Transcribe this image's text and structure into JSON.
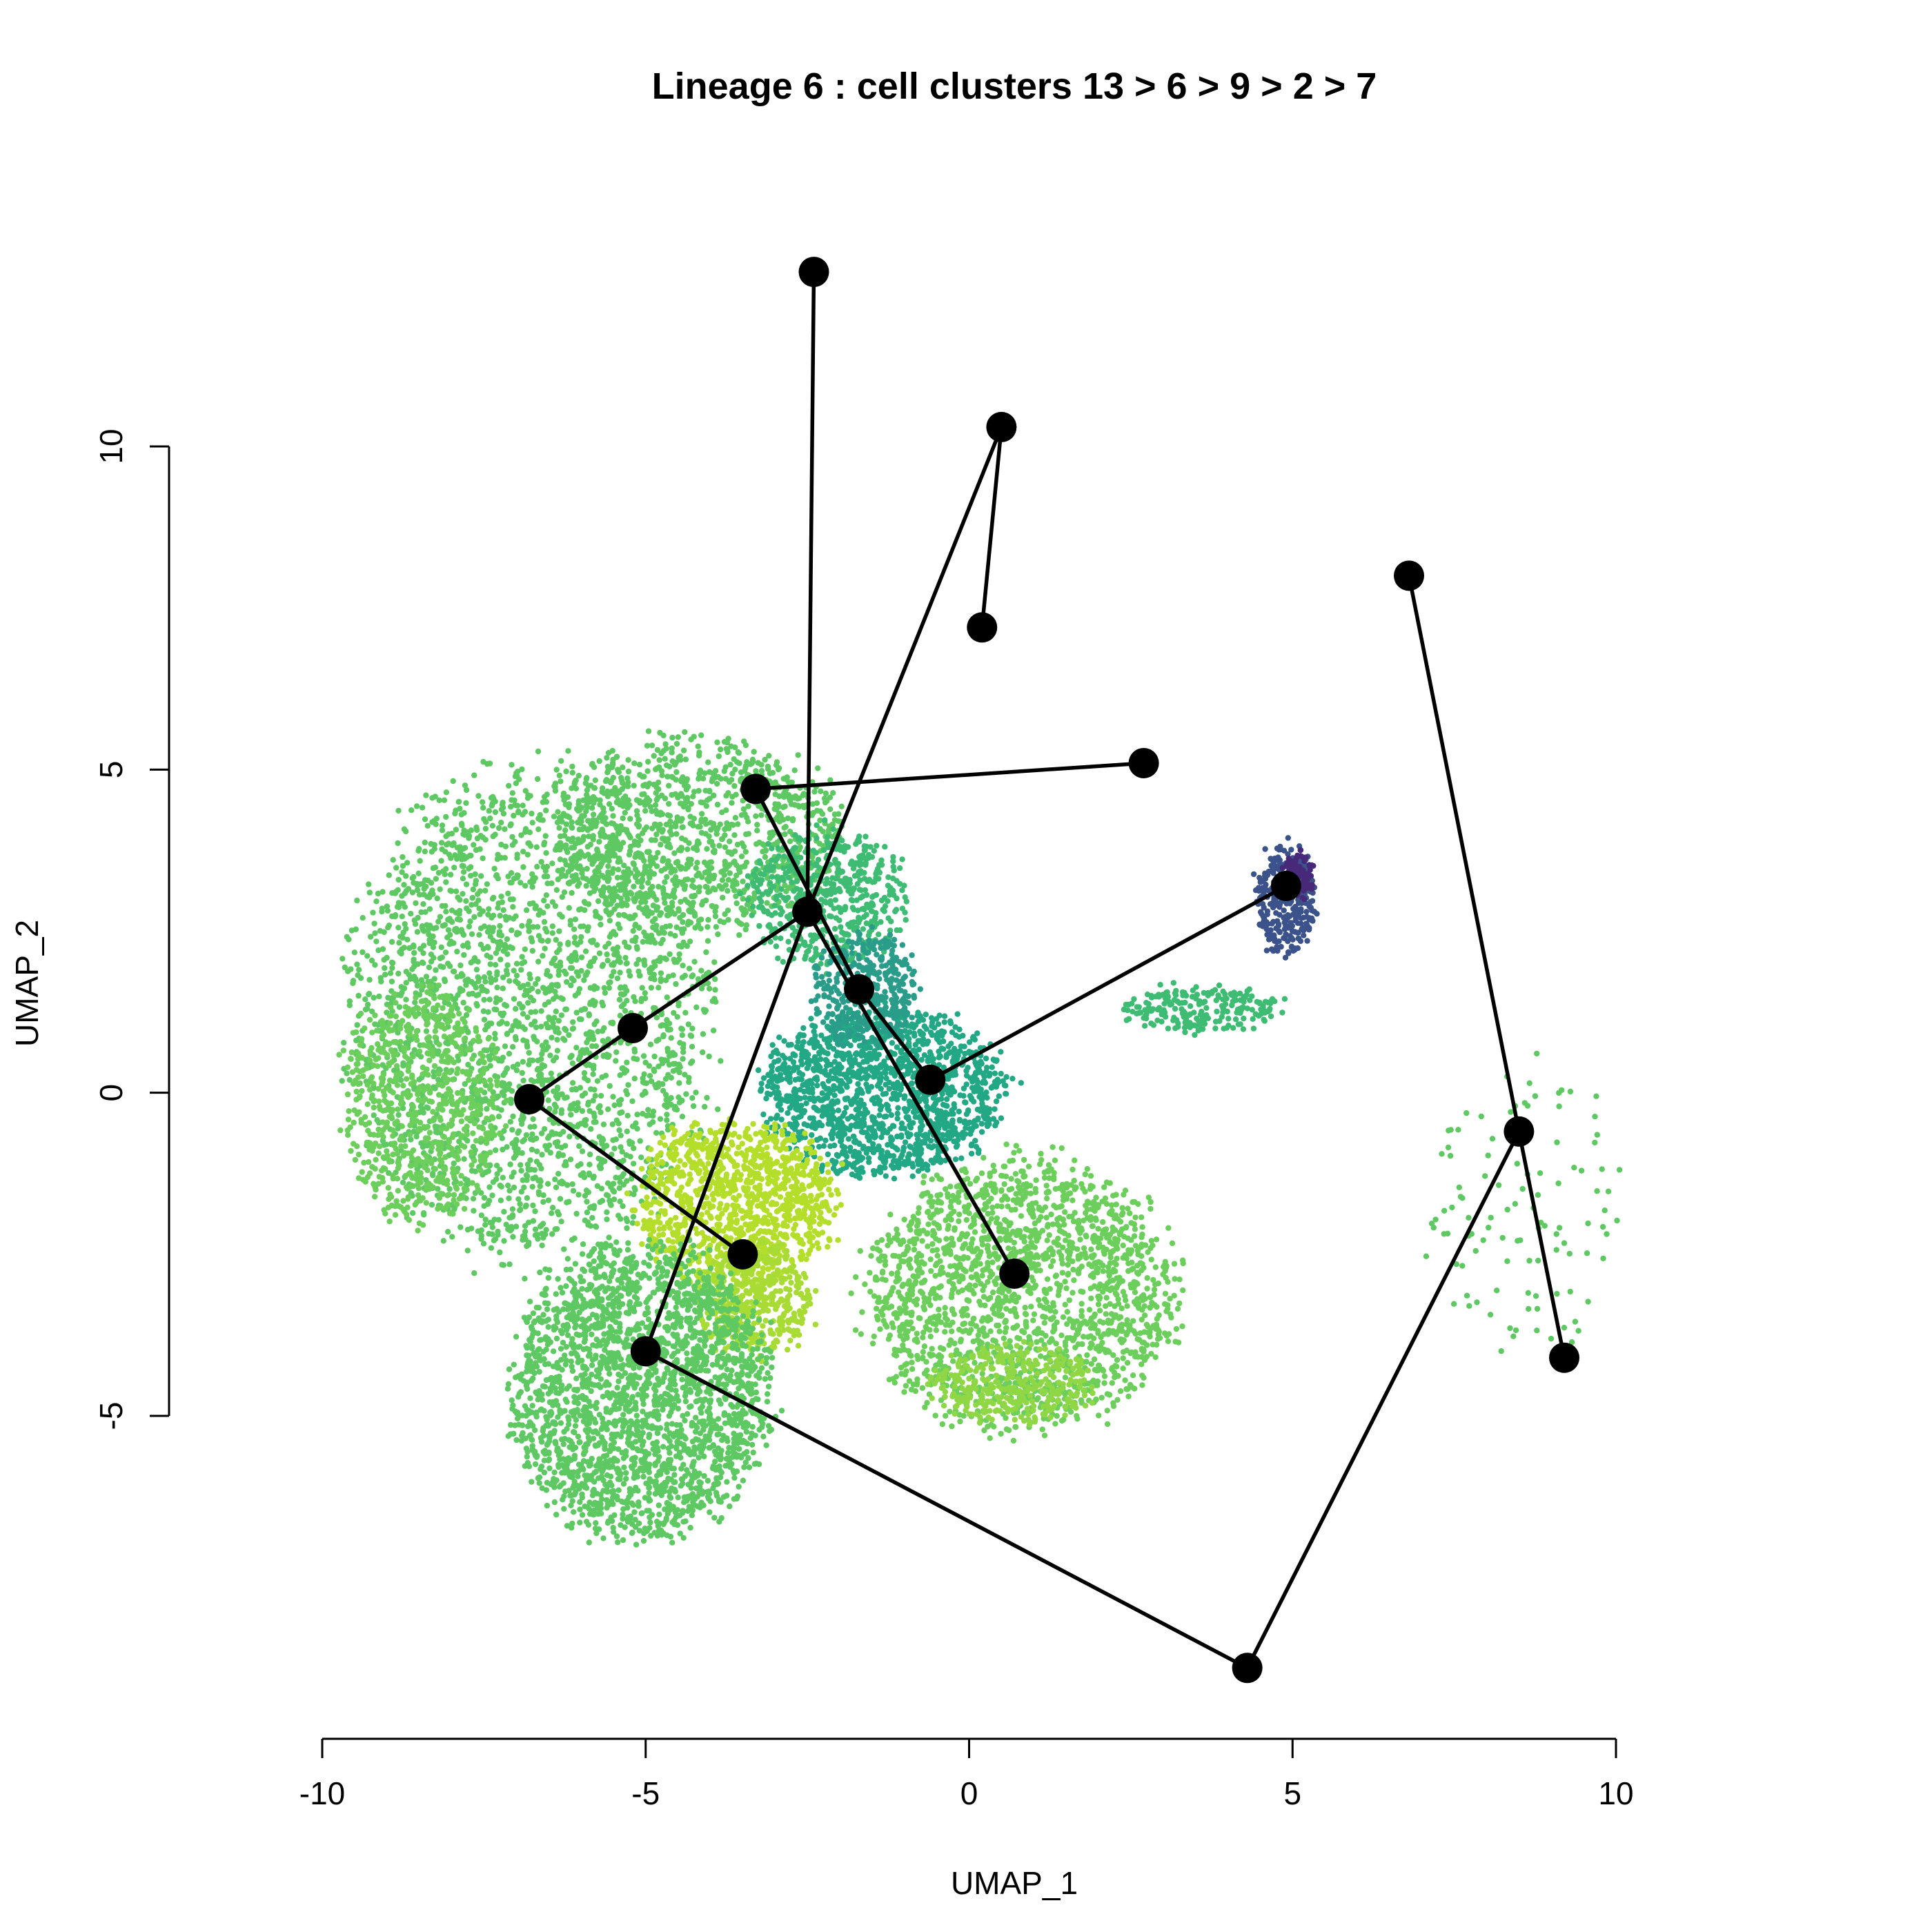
{
  "chart_data": {
    "type": "scatter",
    "title": "Lineage 6 : cell clusters 13 > 6 > 9 > 2 > 7",
    "xlabel": "UMAP_1",
    "ylabel": "UMAP_2",
    "xlim": [
      -10,
      10
    ],
    "ylim": [
      -5,
      10
    ],
    "x_ticks": [
      "-10",
      "-5",
      "0",
      "5",
      "10"
    ],
    "y_ticks": [
      "-5",
      "0",
      "5",
      "10"
    ],
    "grid": false,
    "legend": "none",
    "colormap": [
      "#440154",
      "#3b528b",
      "#21908c",
      "#5ec962",
      "#fde725"
    ],
    "cell_regions": [
      {
        "name": "left-lobe",
        "cx": -6.8,
        "cy": 1.2,
        "rx": 2.8,
        "ry": 3.8,
        "n": 2600,
        "color": "#5ec962"
      },
      {
        "name": "left-edge",
        "cx": -8.5,
        "cy": -0.2,
        "rx": 1.2,
        "ry": 1.8,
        "n": 700,
        "color": "#6ccf5c"
      },
      {
        "name": "upper-band",
        "cx": -4.2,
        "cy": 4.0,
        "rx": 2.3,
        "ry": 1.5,
        "n": 1100,
        "color": "#5ec962"
      },
      {
        "name": "upper-right-band",
        "cx": -2.2,
        "cy": 3.0,
        "rx": 1.2,
        "ry": 1.1,
        "n": 550,
        "color": "#3fbc73"
      },
      {
        "name": "teal-core",
        "cx": -1.3,
        "cy": 0.0,
        "rx": 1.9,
        "ry": 1.3,
        "n": 1500,
        "color": "#22a884"
      },
      {
        "name": "teal-stem",
        "cx": -1.6,
        "cy": 1.6,
        "rx": 0.8,
        "ry": 0.9,
        "n": 350,
        "color": "#2a9d8a"
      },
      {
        "name": "yellow-patch",
        "cx": -3.6,
        "cy": -1.7,
        "rx": 1.6,
        "ry": 1.3,
        "n": 1100,
        "color": "#b5de2b"
      },
      {
        "name": "yellow-tail",
        "cx": -3.3,
        "cy": -3.2,
        "rx": 0.9,
        "ry": 0.9,
        "n": 450,
        "color": "#a8db34"
      },
      {
        "name": "bottom-lobe",
        "cx": -5.1,
        "cy": -4.6,
        "rx": 2.0,
        "ry": 2.3,
        "n": 2400,
        "color": "#5ec962"
      },
      {
        "name": "right-lobe",
        "cx": 0.8,
        "cy": -3.1,
        "rx": 2.4,
        "ry": 2.1,
        "n": 1900,
        "color": "#6ccf5c"
      },
      {
        "name": "right-bottom",
        "cx": 0.7,
        "cy": -4.5,
        "rx": 1.3,
        "ry": 0.6,
        "n": 350,
        "color": "#8fd744"
      },
      {
        "name": "purple-cluster",
        "cx": 4.9,
        "cy": 3.0,
        "rx": 0.45,
        "ry": 0.9,
        "n": 320,
        "color": "#3b528b"
      },
      {
        "name": "purple-tip",
        "cx": 5.1,
        "cy": 3.4,
        "rx": 0.2,
        "ry": 0.35,
        "n": 90,
        "color": "#482878"
      },
      {
        "name": "stream",
        "cx": 3.6,
        "cy": 1.3,
        "rx": 1.2,
        "ry": 0.35,
        "n": 220,
        "color": "#3fbc73"
      },
      {
        "name": "far-right-scatter",
        "cx": 8.6,
        "cy": -1.8,
        "rx": 1.6,
        "ry": 2.4,
        "n": 110,
        "color": "#5ec962"
      }
    ],
    "mst_nodes": [
      {
        "x": -2.4,
        "y": 12.7
      },
      {
        "x": 0.5,
        "y": 10.3
      },
      {
        "x": 0.2,
        "y": 7.2
      },
      {
        "x": 6.8,
        "y": 8.0
      },
      {
        "x": -3.3,
        "y": 4.7
      },
      {
        "x": 2.7,
        "y": 5.1
      },
      {
        "x": -2.5,
        "y": 2.8
      },
      {
        "x": 4.9,
        "y": 3.2
      },
      {
        "x": -1.7,
        "y": 1.6
      },
      {
        "x": -5.2,
        "y": 1.0
      },
      {
        "x": -0.6,
        "y": 0.2
      },
      {
        "x": -6.8,
        "y": -0.1
      },
      {
        "x": 8.5,
        "y": -0.6
      },
      {
        "x": -3.5,
        "y": -2.5
      },
      {
        "x": 0.7,
        "y": -2.8
      },
      {
        "x": -5.0,
        "y": -4.0
      },
      {
        "x": 9.2,
        "y": -4.1
      },
      {
        "x": 4.3,
        "y": -8.9
      }
    ],
    "mst_edges": [
      [
        [
          -2.4,
          12.7
        ],
        [
          -2.5,
          2.8
        ]
      ],
      [
        [
          0.5,
          10.3
        ],
        [
          0.2,
          7.2
        ]
      ],
      [
        [
          0.5,
          10.3
        ],
        [
          -2.5,
          2.8
        ]
      ],
      [
        [
          -2.5,
          2.8
        ],
        [
          -5.0,
          -4.0
        ]
      ],
      [
        [
          -2.5,
          2.8
        ],
        [
          -5.2,
          1.0
        ]
      ],
      [
        [
          -3.3,
          4.7
        ],
        [
          2.7,
          5.1
        ]
      ],
      [
        [
          -3.3,
          4.7
        ],
        [
          -1.7,
          1.6
        ]
      ],
      [
        [
          -1.7,
          1.6
        ],
        [
          -0.6,
          0.2
        ]
      ],
      [
        [
          -2.5,
          2.8
        ],
        [
          0.7,
          -2.8
        ]
      ],
      [
        [
          -0.6,
          0.2
        ],
        [
          4.9,
          3.2
        ]
      ],
      [
        [
          -5.2,
          1.0
        ],
        [
          -6.8,
          -0.1
        ]
      ],
      [
        [
          -6.8,
          -0.1
        ],
        [
          -3.5,
          -2.5
        ]
      ],
      [
        [
          -5.0,
          -4.0
        ],
        [
          4.3,
          -8.9
        ]
      ],
      [
        [
          4.3,
          -8.9
        ],
        [
          8.5,
          -0.6
        ]
      ],
      [
        [
          6.8,
          8.0
        ],
        [
          8.5,
          -0.6
        ]
      ],
      [
        [
          8.5,
          -0.6
        ],
        [
          9.2,
          -4.1
        ]
      ]
    ]
  }
}
